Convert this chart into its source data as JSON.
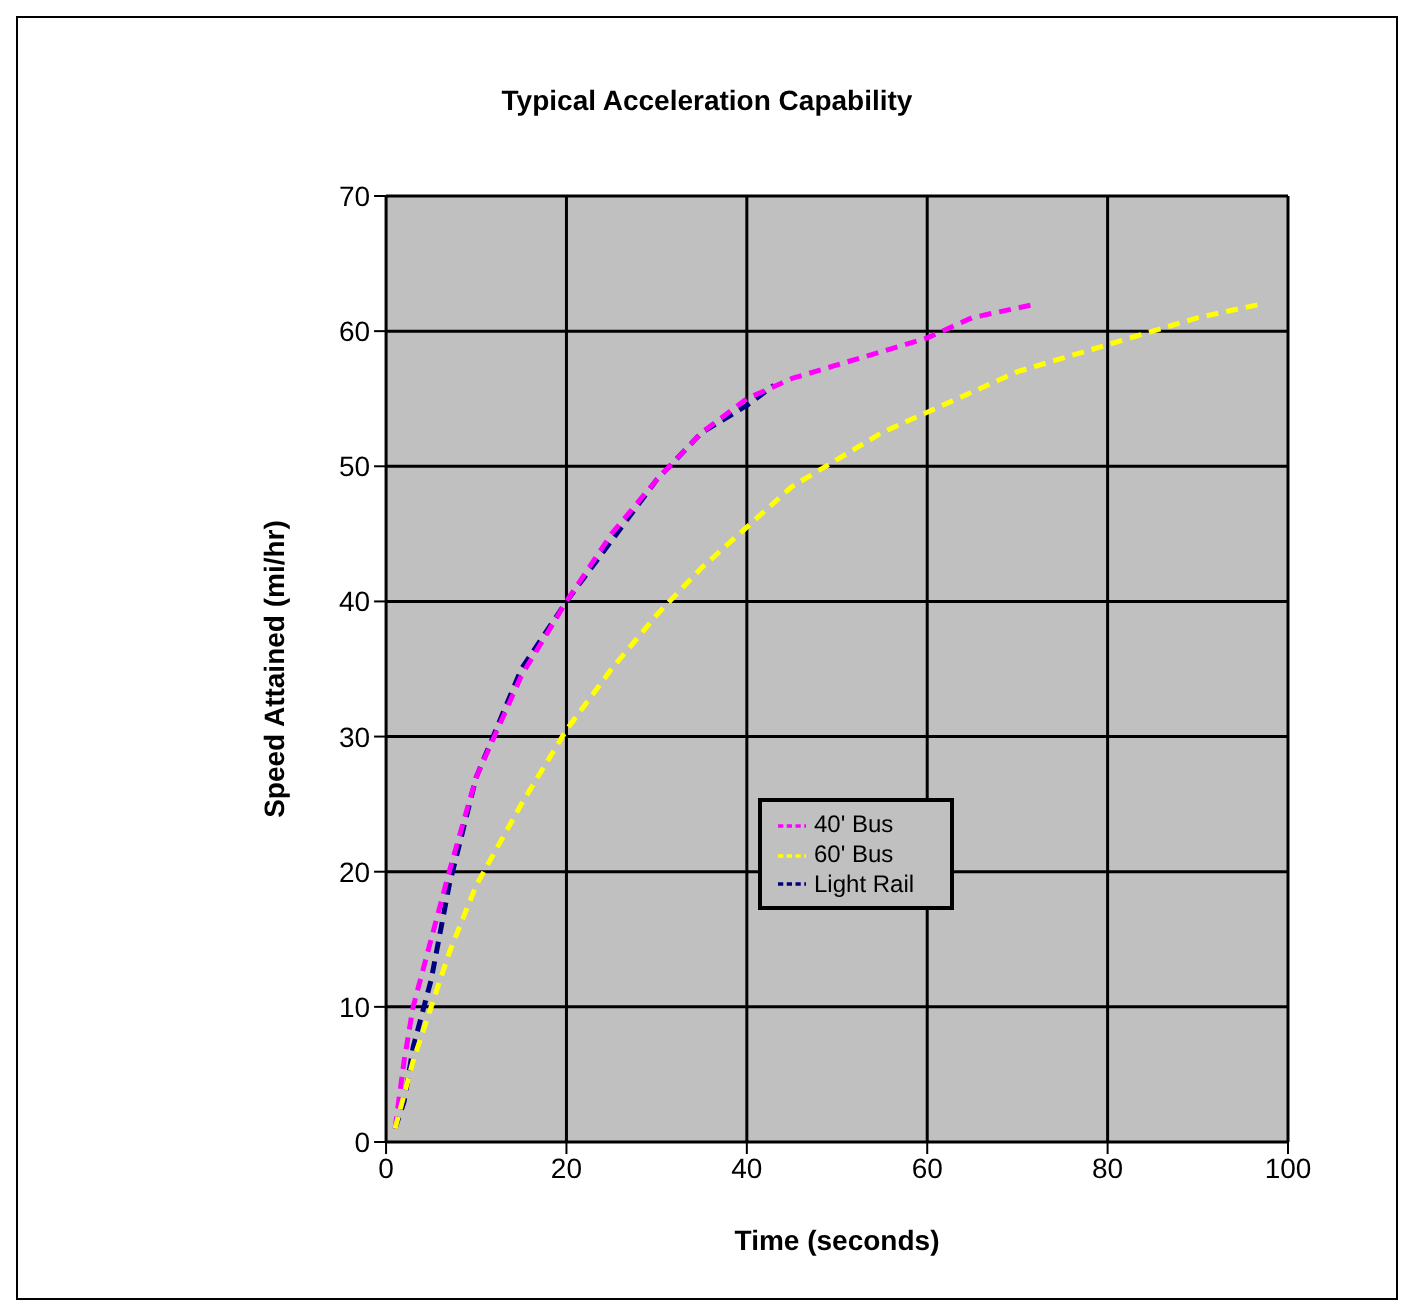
{
  "chart_data": {
    "type": "line",
    "title": "Typical Acceleration Capability",
    "xlabel": "Time (seconds)",
    "ylabel": "Speed Attained (mi/hr)",
    "xlim": [
      0,
      100
    ],
    "xticks": [
      0,
      20,
      40,
      60,
      80,
      100
    ],
    "ylim": [
      0,
      70
    ],
    "yticks": [
      0,
      10,
      20,
      30,
      40,
      50,
      60,
      70
    ],
    "grid": true,
    "legend": "right",
    "line_style": "dashed",
    "marker": "none",
    "series": [
      {
        "name": "Light Rail",
        "color": "#000080",
        "x": [
          1,
          2,
          3,
          5,
          7,
          10,
          15,
          20,
          25,
          30,
          35,
          40,
          43
        ],
        "values": [
          1,
          3,
          7,
          12,
          19,
          27,
          35,
          40,
          44.5,
          49,
          52.5,
          54.5,
          56
        ]
      },
      {
        "name": "40' Bus",
        "color": "#ff00ff",
        "x": [
          1,
          2,
          3,
          5,
          7,
          10,
          15,
          20,
          25,
          30,
          35,
          40,
          45,
          50,
          55,
          60,
          65,
          72
        ],
        "values": [
          1,
          6,
          10,
          15,
          20,
          27,
          34.5,
          40,
          45,
          49,
          52.5,
          55,
          56.5,
          57.5,
          58.5,
          59.5,
          61,
          62
        ]
      },
      {
        "name": "60' Bus",
        "color": "#ffff00",
        "x": [
          1,
          3,
          5,
          7,
          10,
          15,
          20,
          25,
          30,
          35,
          40,
          45,
          50,
          55,
          60,
          65,
          70,
          75,
          80,
          85,
          90,
          97
        ],
        "values": [
          1,
          6,
          10,
          14,
          19,
          25,
          30.5,
          35,
          39,
          42.5,
          45.5,
          48.5,
          50.5,
          52.5,
          54,
          55.5,
          57,
          58,
          59,
          60,
          61,
          62
        ]
      }
    ]
  }
}
